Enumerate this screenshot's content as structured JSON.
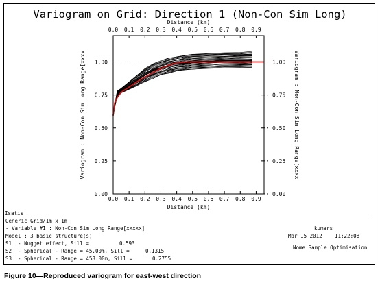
{
  "figure": {
    "title": "Variogram on Grid: Direction 1 (Non-Con Sim Long)",
    "caption": "Figure 10—Reproduced variogram for east-west direction"
  },
  "chart_data": {
    "type": "line",
    "xlabel_top": "Distance (km)",
    "xlabel_bottom": "Distance (km)",
    "ylabel_left": "Variogram : Non-Con Sim Long Range[xxxx",
    "ylabel_right": "Variogram : Non-Con Sim Long Range[xxxx",
    "xlim": [
      0.0,
      0.95
    ],
    "ylim": [
      0.0,
      1.2
    ],
    "x_ticks": [
      "0.0",
      "0.1",
      "0.2",
      "0.3",
      "0.4",
      "0.5",
      "0.6",
      "0.7",
      "0.8",
      "0.9"
    ],
    "x_tick_values": [
      0.0,
      0.1,
      0.2,
      0.3,
      0.4,
      0.5,
      0.6,
      0.7,
      0.8,
      0.9
    ],
    "y_ticks": [
      "0.00",
      "0.25",
      "0.50",
      "0.75",
      "1.00"
    ],
    "y_tick_values": [
      0.0,
      0.25,
      0.5,
      0.75,
      1.0
    ],
    "sill_line": 1.0,
    "model": {
      "name": "Model",
      "color": "#cc1111",
      "x": [
        0.0,
        0.01,
        0.025,
        0.05,
        0.075,
        0.1,
        0.15,
        0.2,
        0.25,
        0.3,
        0.35,
        0.4,
        0.458,
        0.5,
        0.6,
        0.7,
        0.8,
        0.9,
        0.95
      ],
      "y": [
        0.593,
        0.69,
        0.73,
        0.77,
        0.79,
        0.81,
        0.85,
        0.885,
        0.92,
        0.95,
        0.975,
        0.992,
        1.0,
        1.0,
        1.0,
        1.0,
        1.0,
        1.0,
        1.0
      ]
    },
    "experimental_band": {
      "color": "#000000",
      "x": [
        0.0,
        0.025,
        0.05,
        0.1,
        0.15,
        0.2,
        0.25,
        0.3,
        0.35,
        0.4,
        0.45,
        0.5,
        0.6,
        0.7,
        0.8,
        0.875
      ],
      "y_low": [
        0.6,
        0.74,
        0.765,
        0.79,
        0.82,
        0.85,
        0.875,
        0.9,
        0.915,
        0.93,
        0.94,
        0.945,
        0.95,
        0.955,
        0.955,
        0.955
      ],
      "y_high": [
        0.6,
        0.78,
        0.8,
        0.85,
        0.9,
        0.95,
        0.99,
        1.01,
        1.03,
        1.04,
        1.05,
        1.06,
        1.065,
        1.07,
        1.075,
        1.08
      ],
      "y_mean": [
        0.6,
        0.76,
        0.78,
        0.82,
        0.86,
        0.9,
        0.935,
        0.955,
        0.975,
        0.985,
        0.99,
        1.0,
        1.005,
        1.01,
        1.01,
        1.01
      ]
    }
  },
  "info": {
    "app": "Isatis",
    "grid": "Generic Grid/1m x 1m",
    "variable": "- Variable #1 : Non-Con Sim Long Range[xxxxx]",
    "model": "Model : 3 basic structure(s)",
    "s1_label": "S1  - Nugget effect, Sill =",
    "s1_value": "0.593",
    "s2_label": "S2  - Spherical - Range = 45.00m, Sill =",
    "s2_value": "0.1315",
    "s3_label": "S3  - Spherical - Range = 458.00m, Sill =",
    "s3_value": "0.2755",
    "user": "kumars",
    "date": "Mar 15 2012",
    "time": "11:22:08",
    "note": "Nome Sample Optimisation"
  }
}
